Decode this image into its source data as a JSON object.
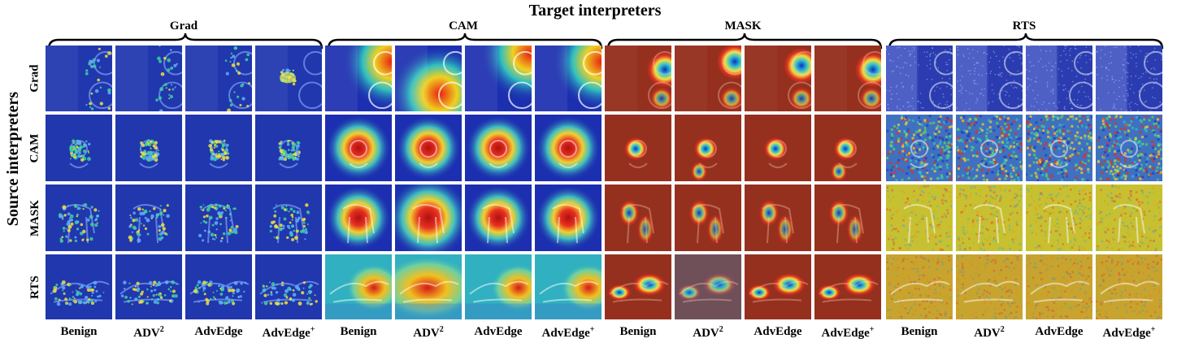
{
  "title": "Target interpreters",
  "side_title": "Source interpreters",
  "target_groups": [
    "Grad",
    "CAM",
    "MASK",
    "RTS"
  ],
  "source_rows": [
    "Grad",
    "CAM",
    "MASK",
    "RTS"
  ],
  "columns": [
    {
      "base": "Benign",
      "sup": ""
    },
    {
      "base": "ADV",
      "sup": "2"
    },
    {
      "base": "AdvEdge",
      "sup": ""
    },
    {
      "base": "AdvEdge",
      "sup": "+"
    }
  ],
  "rows": [
    {
      "label": "Grad",
      "image": "tiger-shark-wheel"
    },
    {
      "label": "CAM",
      "image": "cat-in-foliage"
    },
    {
      "label": "MASK",
      "image": "spotted-dog"
    },
    {
      "label": "RTS",
      "image": "running-dog"
    }
  ],
  "colors": {
    "grad_bg": "#1a2a9a",
    "cam_hot": "#e02020",
    "mask_bg": "#7a2a1a",
    "rts_bg": "#c8c030"
  }
}
